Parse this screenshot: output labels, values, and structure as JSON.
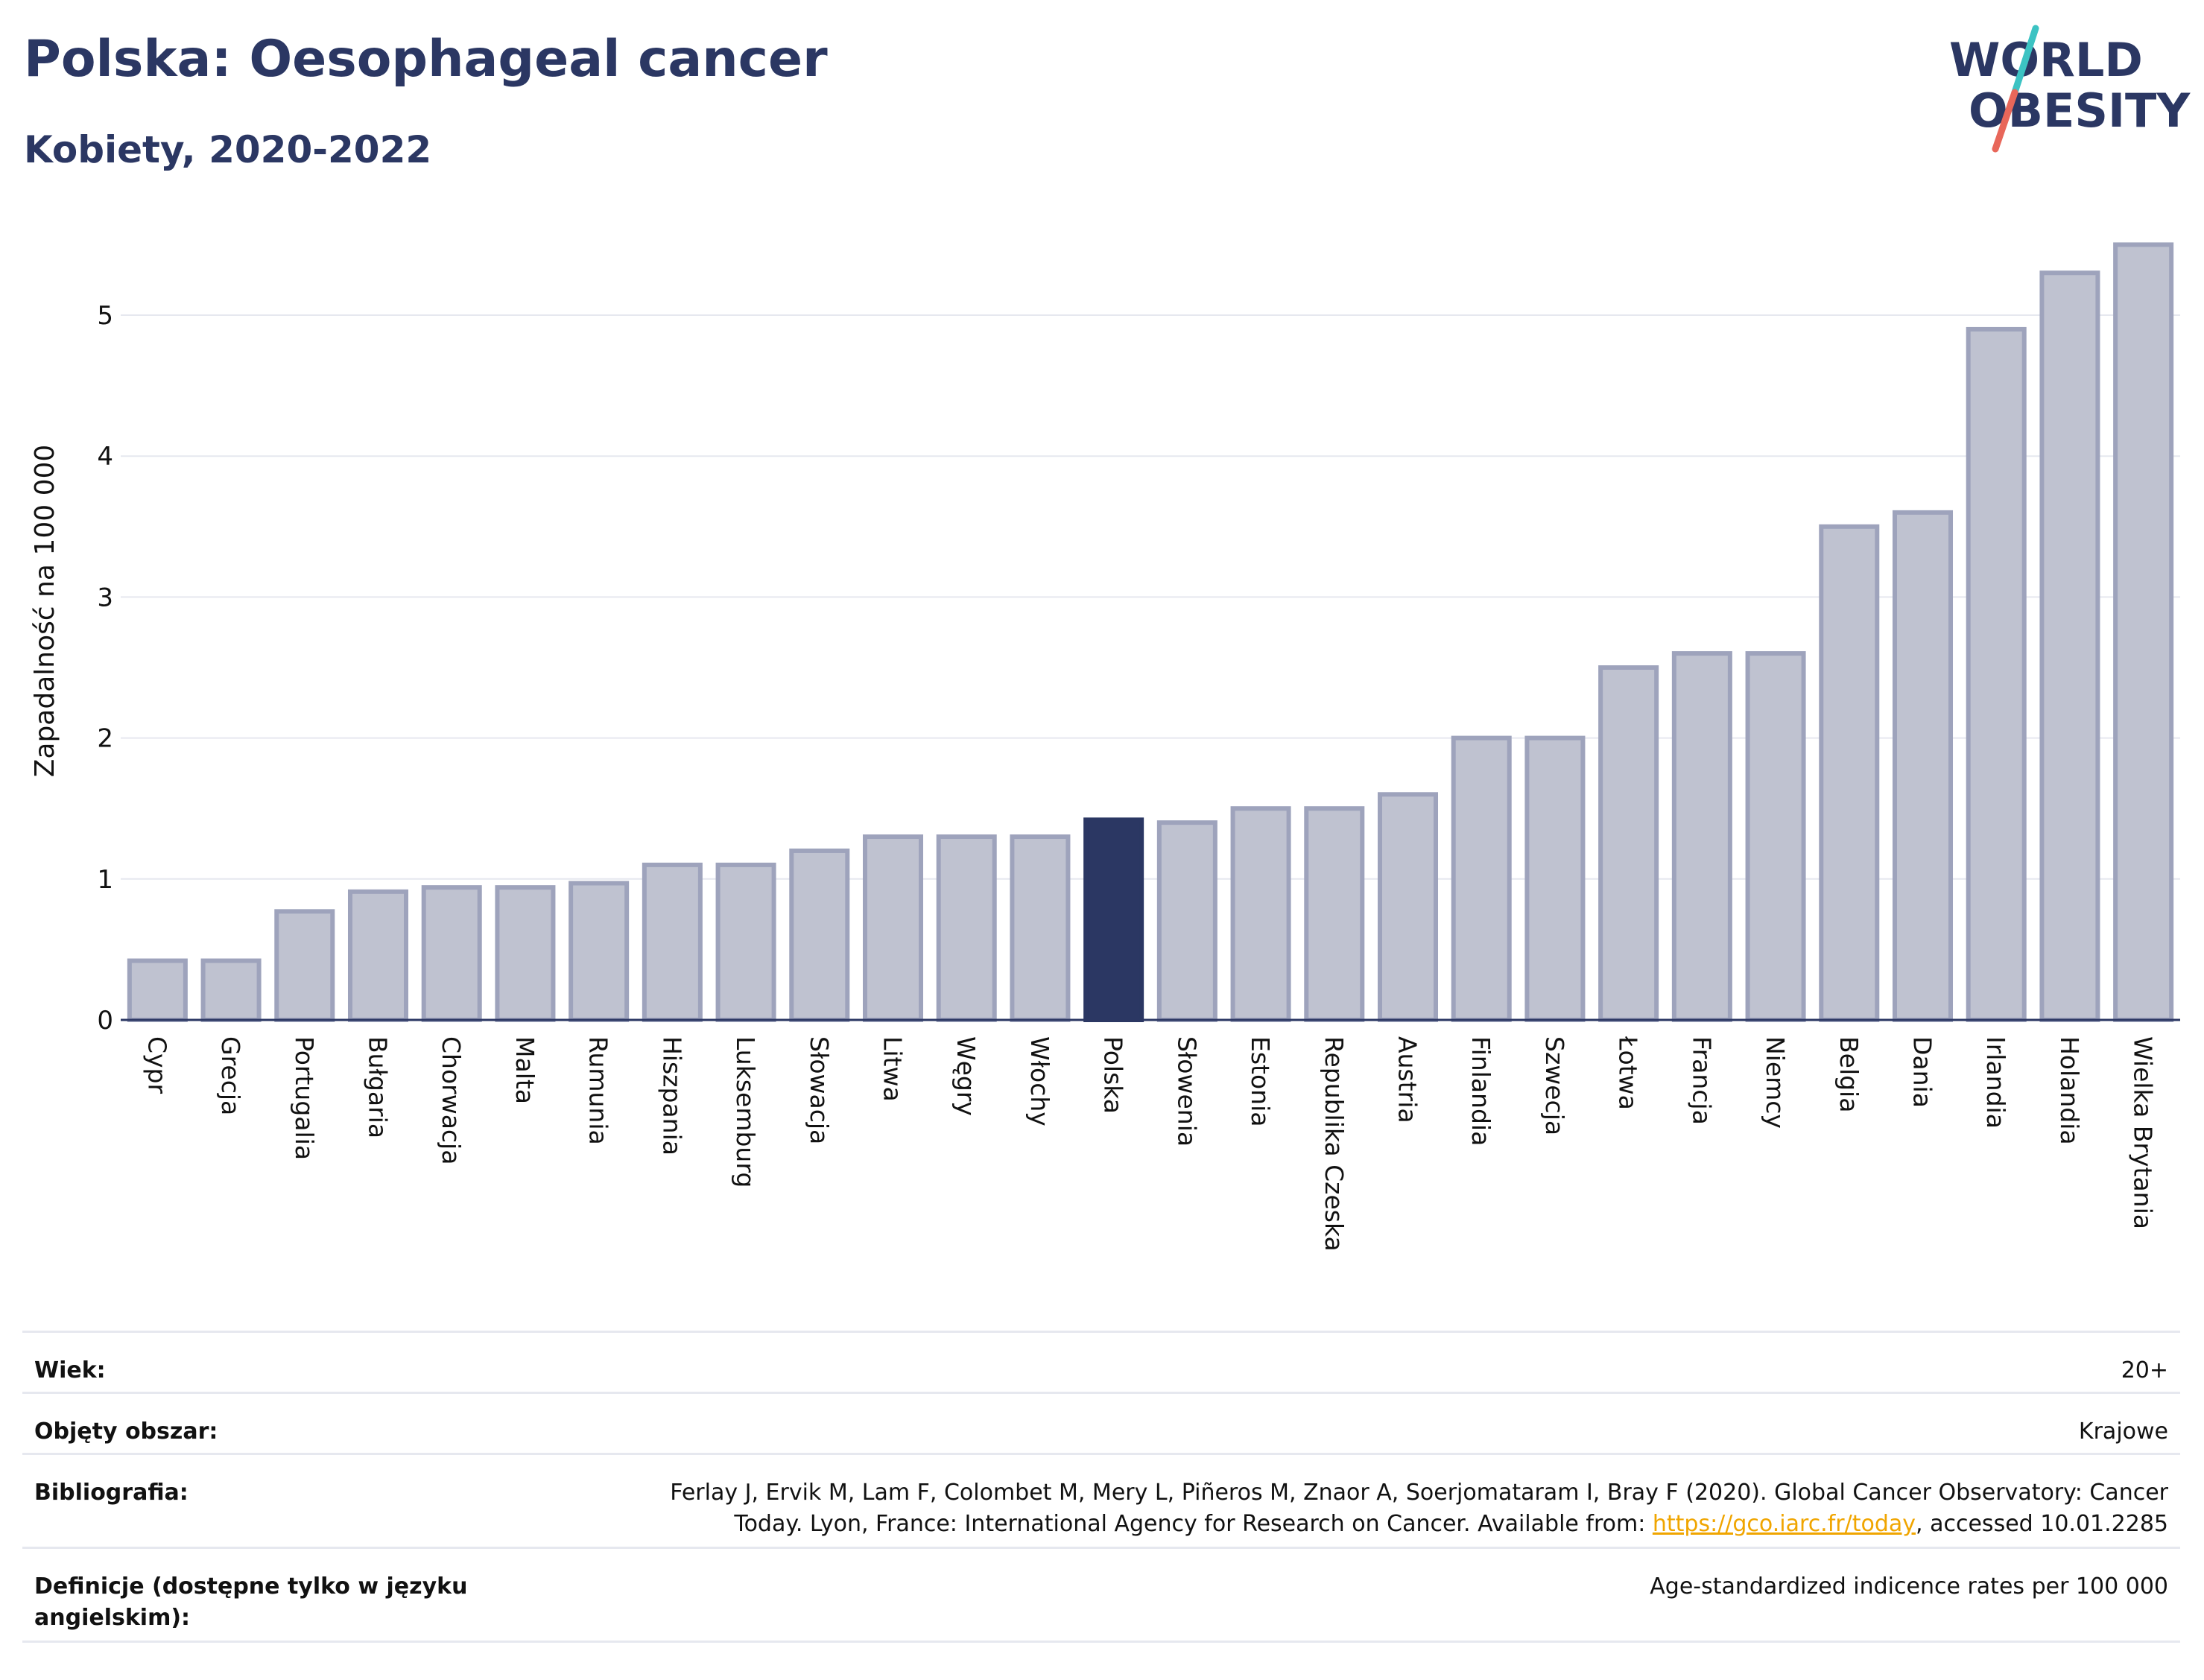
{
  "header": {
    "title": "Polska: Oesophageal cancer",
    "subtitle": "Kobiety, 2020-2022"
  },
  "logo": {
    "line1": "WORLD",
    "line2": "OBESITY",
    "accent_teal": "#3cc3c3",
    "accent_red": "#e8675a",
    "text_color": "#2b3763"
  },
  "colors": {
    "bar": "#bfc2d0",
    "bar_stroke": "#9ea3bc",
    "highlight": "#2b3763",
    "grid": "#e6e8ef",
    "axis": "#2b3763"
  },
  "chart_data": {
    "type": "bar",
    "title": "",
    "xlabel": "",
    "ylabel": "Zapadalność na 100 000",
    "ylim": [
      0,
      5.6
    ],
    "yticks": [
      0,
      1,
      2,
      3,
      4,
      5
    ],
    "grid": true,
    "highlight_category": "Polska",
    "categories": [
      "Cypr",
      "Grecja",
      "Portugalia",
      "Bułgaria",
      "Chorwacja",
      "Malta",
      "Rumunia",
      "Hiszpania",
      "Luksemburg",
      "Słowacja",
      "Litwa",
      "Węgry",
      "Włochy",
      "Polska",
      "Słowenia",
      "Estonia",
      "Republika Czeska",
      "Austria",
      "Finlandia",
      "Szwecja",
      "Łotwa",
      "Francja",
      "Niemcy",
      "Belgia",
      "Dania",
      "Irlandia",
      "Holandia",
      "Wielka Brytania"
    ],
    "values": [
      0.42,
      0.42,
      0.77,
      0.91,
      0.94,
      0.94,
      0.97,
      1.1,
      1.1,
      1.2,
      1.3,
      1.3,
      1.3,
      1.42,
      1.4,
      1.5,
      1.5,
      1.6,
      2.0,
      2.0,
      2.5,
      2.6,
      2.6,
      3.5,
      3.6,
      4.9,
      5.3,
      5.5
    ]
  },
  "info": [
    {
      "label": "Wiek:",
      "value": "20+"
    },
    {
      "label": "Objęty obszar:",
      "value": "Krajowe"
    },
    {
      "label": "Bibliografia:",
      "value_line1": "Ferlay J, Ervik M, Lam F, Colombet M, Mery L, Piñeros M, Znaor A, Soerjomataram I, Bray F (2020). Global Cancer Observatory: Cancer",
      "value_line2_pre": "Today. Lyon, France: International Agency for Research on Cancer. Available from: ",
      "link": "https://gco.iarc.fr/today",
      "value_line2_post": ", accessed 10.01.2285"
    },
    {
      "label_line1": "Definicje (dostępne tylko w języku",
      "label_line2": "angielskim):",
      "value": "Age-standardized indicence rates per 100 000"
    }
  ]
}
